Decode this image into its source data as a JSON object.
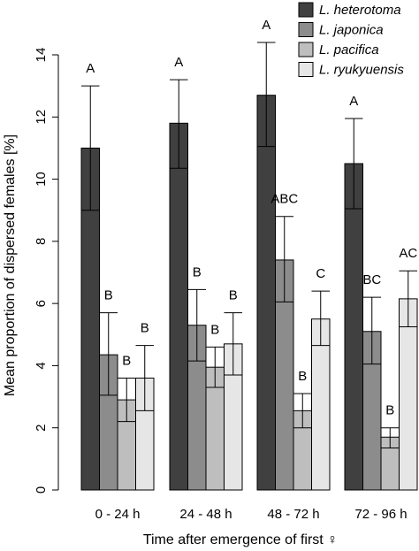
{
  "chart_data": {
    "type": "bar",
    "xlabel": "Time after emergence of first ♀",
    "ylabel": "Mean proportion of dispersed females [%]",
    "ylim": [
      0,
      14
    ],
    "yticks": [
      0,
      2,
      4,
      6,
      8,
      10,
      12,
      14
    ],
    "grid": false,
    "legend_position": "top-right",
    "categories": [
      "0 - 24 h",
      "24 - 48 h",
      "48 - 72 h",
      "72 - 96 h"
    ],
    "series": [
      {
        "name": "L. heterotoma",
        "color": "#404040",
        "values": [
          11.0,
          11.8,
          12.7,
          10.5
        ],
        "error_low": [
          9.0,
          10.35,
          11.05,
          9.05
        ],
        "error_high": [
          13.0,
          13.2,
          14.4,
          11.95
        ],
        "letters": [
          "A",
          "A",
          "A",
          "A"
        ]
      },
      {
        "name": "L. japonica",
        "color": "#8c8c8c",
        "values": [
          4.35,
          5.3,
          7.4,
          5.1
        ],
        "error_low": [
          3.05,
          4.15,
          6.05,
          4.05
        ],
        "error_high": [
          5.7,
          6.45,
          8.8,
          6.2
        ],
        "letters": [
          "B",
          "B",
          "ABC",
          "BC"
        ]
      },
      {
        "name": "L. pacifica",
        "color": "#bebebe",
        "values": [
          2.9,
          3.95,
          2.55,
          1.7
        ],
        "error_low": [
          2.2,
          3.3,
          2.0,
          1.35
        ],
        "error_high": [
          3.6,
          4.6,
          3.1,
          2.0
        ],
        "letters": [
          "B",
          "B",
          "B",
          "B"
        ]
      },
      {
        "name": "L. ryukyuensis",
        "color": "#e6e6e6",
        "values": [
          3.6,
          4.7,
          5.5,
          6.15
        ],
        "error_low": [
          2.55,
          3.7,
          4.65,
          5.25
        ],
        "error_high": [
          4.65,
          5.7,
          6.4,
          7.05
        ],
        "letters": [
          "B",
          "B",
          "C",
          "AC"
        ]
      }
    ]
  }
}
